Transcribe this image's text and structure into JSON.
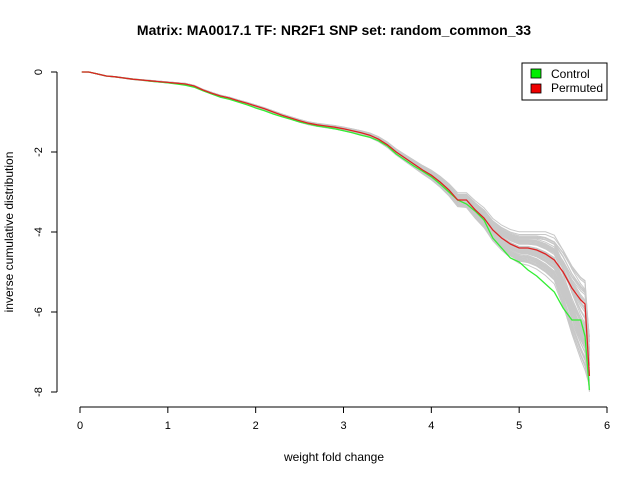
{
  "chart_data": {
    "type": "line",
    "title": "Matrix: MA0017.1 TF: NR2F1 SNP set: random_common_33",
    "xlabel": "weight fold change",
    "ylabel": "inverse cumulative distribution",
    "xlim": [
      0,
      6
    ],
    "ylim": [
      -8,
      0
    ],
    "xticks": [
      "0",
      "1",
      "2",
      "3",
      "4",
      "5",
      "6"
    ],
    "yticks": [
      "0",
      "-2",
      "-4",
      "-6",
      "-8"
    ],
    "grid": false,
    "legend_position": "top-right",
    "legend": [
      {
        "label": "Control",
        "color": "#00ee00"
      },
      {
        "label": "Permuted",
        "color": "#ee0000"
      }
    ],
    "series": [
      {
        "name": "Control",
        "color": "#33ee33",
        "x": [
          0.02,
          0.1,
          0.2,
          0.3,
          0.4,
          0.5,
          0.6,
          0.7,
          0.8,
          0.9,
          1.0,
          1.1,
          1.2,
          1.3,
          1.4,
          1.5,
          1.6,
          1.7,
          1.8,
          1.9,
          2.0,
          2.1,
          2.2,
          2.3,
          2.4,
          2.5,
          2.6,
          2.7,
          2.8,
          2.9,
          3.0,
          3.1,
          3.2,
          3.3,
          3.4,
          3.5,
          3.6,
          3.7,
          3.8,
          3.9,
          4.0,
          4.1,
          4.2,
          4.3,
          4.4,
          4.5,
          4.6,
          4.7,
          4.8,
          4.9,
          5.0,
          5.1,
          5.2,
          5.3,
          5.4,
          5.5,
          5.6,
          5.7,
          5.75,
          5.8
        ],
        "y": [
          0.0,
          0.0,
          -0.05,
          -0.1,
          -0.12,
          -0.15,
          -0.18,
          -0.2,
          -0.23,
          -0.25,
          -0.27,
          -0.3,
          -0.33,
          -0.38,
          -0.47,
          -0.55,
          -0.63,
          -0.68,
          -0.75,
          -0.82,
          -0.9,
          -0.97,
          -1.05,
          -1.12,
          -1.18,
          -1.25,
          -1.3,
          -1.35,
          -1.38,
          -1.42,
          -1.47,
          -1.52,
          -1.58,
          -1.63,
          -1.72,
          -1.85,
          -2.05,
          -2.2,
          -2.35,
          -2.48,
          -2.62,
          -2.8,
          -3.0,
          -3.2,
          -3.3,
          -3.48,
          -3.7,
          -4.15,
          -4.4,
          -4.65,
          -4.75,
          -4.95,
          -5.1,
          -5.3,
          -5.5,
          -5.9,
          -6.2,
          -6.2,
          -6.6,
          -7.95
        ]
      },
      {
        "name": "Permuted",
        "color": "#dd2222",
        "x": [
          0.02,
          0.1,
          0.2,
          0.3,
          0.4,
          0.5,
          0.6,
          0.7,
          0.8,
          0.9,
          1.0,
          1.1,
          1.2,
          1.3,
          1.4,
          1.5,
          1.6,
          1.7,
          1.8,
          1.9,
          2.0,
          2.1,
          2.2,
          2.3,
          2.4,
          2.5,
          2.6,
          2.7,
          2.8,
          2.9,
          3.0,
          3.1,
          3.2,
          3.3,
          3.4,
          3.5,
          3.6,
          3.7,
          3.8,
          3.9,
          4.0,
          4.1,
          4.2,
          4.3,
          4.4,
          4.5,
          4.6,
          4.7,
          4.8,
          4.9,
          5.0,
          5.1,
          5.2,
          5.3,
          5.4,
          5.5,
          5.6,
          5.7,
          5.75,
          5.8
        ],
        "y": [
          0.0,
          0.0,
          -0.05,
          -0.1,
          -0.12,
          -0.15,
          -0.18,
          -0.2,
          -0.22,
          -0.24,
          -0.26,
          -0.28,
          -0.3,
          -0.35,
          -0.45,
          -0.53,
          -0.6,
          -0.65,
          -0.72,
          -0.78,
          -0.85,
          -0.92,
          -1.0,
          -1.08,
          -1.15,
          -1.22,
          -1.28,
          -1.32,
          -1.35,
          -1.38,
          -1.42,
          -1.47,
          -1.52,
          -1.58,
          -1.68,
          -1.82,
          -2.0,
          -2.15,
          -2.3,
          -2.45,
          -2.58,
          -2.75,
          -2.95,
          -3.2,
          -3.2,
          -3.45,
          -3.65,
          -3.95,
          -4.15,
          -4.3,
          -4.4,
          -4.4,
          -4.45,
          -4.55,
          -4.7,
          -5.0,
          -5.4,
          -5.7,
          -5.8,
          -7.6
        ]
      }
    ],
    "background_series_color": "#c8c8c8"
  }
}
